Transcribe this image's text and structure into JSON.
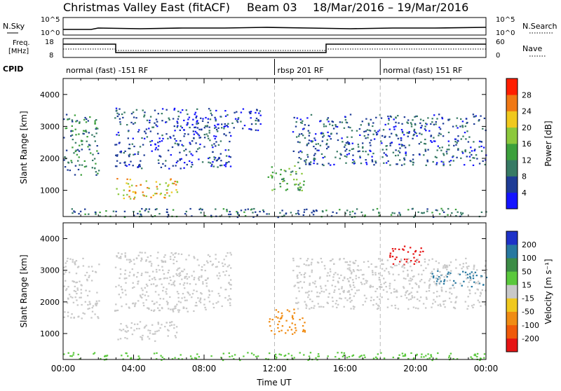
{
  "title": {
    "station": "Christmas Valley East (fitACF)",
    "beam": "Beam 03",
    "dates": "18/Mar/2016 – 19/Mar/2016"
  },
  "top_panels": {
    "nsky_label": "N.Sky",
    "nsearch_label": "N.Search",
    "nsky_ticks": [
      "10^5",
      "10^0"
    ],
    "nsearch_ticks": [
      "10^5",
      "10^0"
    ],
    "freq_label_1": "Freq.",
    "freq_label_2": "[MHz]",
    "freq_ticks": [
      "18",
      "8"
    ],
    "nave_ticks": [
      "60",
      "0"
    ],
    "nave_label": "Nave",
    "cpid_label": "CPID",
    "cpid_segments": [
      {
        "label": "normal (fast) -151 RF",
        "start_hr": 0,
        "end_hr": 12
      },
      {
        "label": "rbsp 201 RF",
        "start_hr": 12,
        "end_hr": 18
      },
      {
        "label": "normal (fast) 151 RF",
        "start_hr": 18,
        "end_hr": 24
      }
    ]
  },
  "time_axis": {
    "label": "Time UT",
    "ticks": [
      "00:00",
      "04:00",
      "08:00",
      "12:00",
      "16:00",
      "20:00",
      "00:00"
    ]
  },
  "chart_data": [
    {
      "type": "heatmap",
      "name": "power",
      "xlabel": "Time UT",
      "ylabel": "Slant Range [km]",
      "xlim": [
        0,
        24
      ],
      "ylim": [
        180,
        4500
      ],
      "yticks": [
        1000,
        2000,
        3000,
        4000
      ],
      "colorbar": {
        "label": "Power [dB]",
        "ticks": [
          "4",
          "8",
          "12",
          "16",
          "20",
          "24",
          "28"
        ],
        "colors": [
          "#1414ff",
          "#1e3c96",
          "#377a64",
          "#3ca03c",
          "#8cc83c",
          "#f0c81e",
          "#f07814",
          "#ff1e00"
        ]
      },
      "scatter_regions": [
        {
          "t_start": 0.0,
          "t_end": 2.0,
          "r_start": 1500,
          "r_end": 3400,
          "level": 10
        },
        {
          "t_start": 2.9,
          "t_end": 9.5,
          "r_start": 1700,
          "r_end": 3600,
          "level": 6
        },
        {
          "t_start": 3.0,
          "t_end": 6.5,
          "r_start": 750,
          "r_end": 1400,
          "level": 22
        },
        {
          "t_start": 9.5,
          "t_end": 11.2,
          "r_start": 2800,
          "r_end": 3600,
          "level": 5
        },
        {
          "t_start": 11.6,
          "t_end": 13.7,
          "r_start": 1000,
          "r_end": 1800,
          "level": 14
        },
        {
          "t_start": 13.0,
          "t_end": 24.0,
          "r_start": 1800,
          "r_end": 3400,
          "level": 7
        },
        {
          "t_start": 0.0,
          "t_end": 24.0,
          "r_start": 180,
          "r_end": 450,
          "level": 9
        }
      ]
    },
    {
      "type": "heatmap",
      "name": "velocity",
      "xlabel": "Time UT",
      "ylabel": "Slant Range [km]",
      "xlim": [
        0,
        24
      ],
      "ylim": [
        180,
        4500
      ],
      "yticks": [
        1000,
        2000,
        3000,
        4000
      ],
      "colorbar": {
        "label": "Velocity [m s⁻¹]",
        "ticks": [
          "200",
          "100",
          "50",
          "15",
          "-15",
          "-50",
          "-100",
          "-200"
        ],
        "colors": [
          "#1e32c8",
          "#2878a0",
          "#3c8c46",
          "#5ac83c",
          "#c8c8c8",
          "#f0c81e",
          "#f08c14",
          "#f05a0a",
          "#e61414"
        ]
      },
      "scatter_regions": [
        {
          "t_start": 0.0,
          "t_end": 2.0,
          "r_start": 1500,
          "r_end": 3400,
          "level": 0
        },
        {
          "t_start": 2.9,
          "t_end": 9.5,
          "r_start": 1700,
          "r_end": 3600,
          "level": 0
        },
        {
          "t_start": 3.0,
          "t_end": 6.5,
          "r_start": 750,
          "r_end": 1400,
          "level": 0
        },
        {
          "t_start": 11.6,
          "t_end": 13.7,
          "r_start": 1000,
          "r_end": 1800,
          "level": -60
        },
        {
          "t_start": 18.5,
          "t_end": 20.5,
          "r_start": 3200,
          "r_end": 3800,
          "level": -220
        },
        {
          "t_start": 20.8,
          "t_end": 24.0,
          "r_start": 2500,
          "r_end": 3000,
          "level": 180
        },
        {
          "t_start": 13.0,
          "t_end": 24.0,
          "r_start": 1800,
          "r_end": 3400,
          "level": 0
        },
        {
          "t_start": 0.0,
          "t_end": 24.0,
          "r_start": 180,
          "r_end": 420,
          "level": 30
        }
      ]
    }
  ]
}
